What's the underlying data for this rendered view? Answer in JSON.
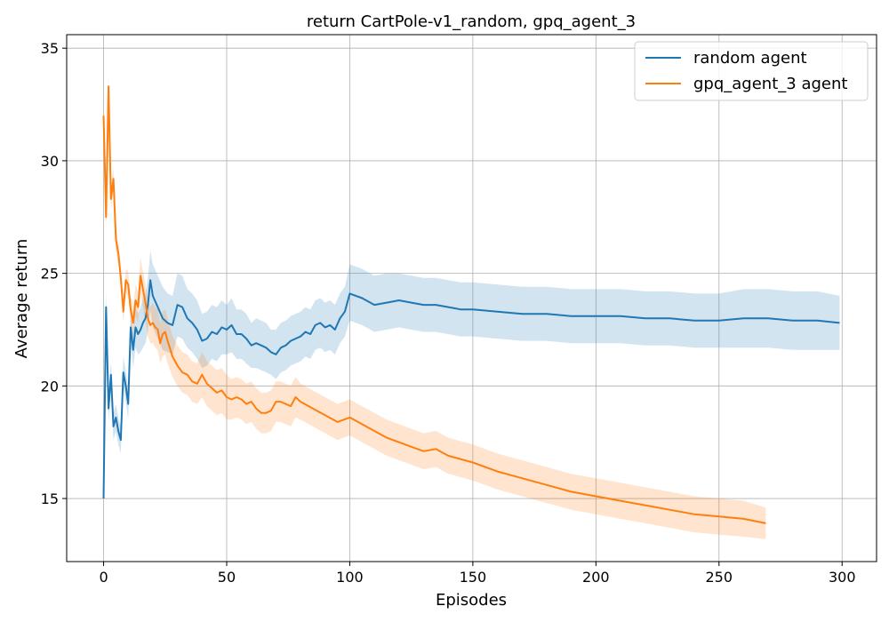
{
  "chart_data": {
    "type": "line",
    "title": "return CartPole-v1_random, gpq_agent_3",
    "xlabel": "Episodes",
    "ylabel": "Average return",
    "xlim": [
      -15,
      314
    ],
    "ylim": [
      12.2,
      35.6
    ],
    "xticks": [
      0,
      50,
      100,
      150,
      200,
      250,
      300
    ],
    "yticks": [
      15,
      20,
      25,
      30,
      35
    ],
    "grid": true,
    "legend_position": "top-right",
    "series": [
      {
        "name": "random agent",
        "color": "#1f77b4",
        "band_color": "#1f77b4",
        "x": [
          0,
          1,
          2,
          3,
          4,
          5,
          6,
          7,
          8,
          9,
          10,
          11,
          12,
          13,
          14,
          15,
          16,
          17,
          18,
          19,
          20,
          22,
          24,
          26,
          28,
          30,
          32,
          34,
          36,
          38,
          40,
          42,
          44,
          46,
          48,
          50,
          52,
          54,
          56,
          58,
          60,
          62,
          64,
          66,
          68,
          70,
          72,
          74,
          76,
          78,
          80,
          82,
          84,
          86,
          88,
          90,
          92,
          94,
          96,
          98,
          100,
          105,
          110,
          115,
          120,
          125,
          130,
          135,
          140,
          145,
          150,
          160,
          170,
          180,
          190,
          200,
          210,
          220,
          230,
          240,
          250,
          260,
          270,
          280,
          290,
          299
        ],
        "y": [
          15.0,
          23.5,
          19.0,
          20.5,
          18.2,
          18.6,
          18.0,
          17.6,
          20.6,
          20.0,
          19.2,
          22.6,
          21.6,
          22.6,
          22.3,
          22.5,
          22.8,
          23.0,
          23.6,
          24.7,
          24.0,
          23.5,
          23.0,
          22.8,
          22.7,
          23.6,
          23.5,
          23.0,
          22.8,
          22.5,
          22.0,
          22.1,
          22.4,
          22.3,
          22.6,
          22.5,
          22.7,
          22.3,
          22.3,
          22.1,
          21.8,
          21.9,
          21.8,
          21.7,
          21.5,
          21.4,
          21.7,
          21.8,
          22.0,
          22.1,
          22.2,
          22.4,
          22.3,
          22.7,
          22.8,
          22.6,
          22.7,
          22.5,
          23.0,
          23.3,
          24.1,
          23.9,
          23.6,
          23.7,
          23.8,
          23.7,
          23.6,
          23.6,
          23.5,
          23.4,
          23.4,
          23.3,
          23.2,
          23.2,
          23.1,
          23.1,
          23.1,
          23.0,
          23.0,
          22.9,
          22.9,
          23.0,
          23.0,
          22.9,
          22.9,
          22.8
        ],
        "lower": [
          15.0,
          22.8,
          18.4,
          19.9,
          17.6,
          18.0,
          17.4,
          17.0,
          19.9,
          19.3,
          18.5,
          21.8,
          20.8,
          21.7,
          21.4,
          21.5,
          21.7,
          21.9,
          22.4,
          23.4,
          22.6,
          22.1,
          21.6,
          21.5,
          21.4,
          22.2,
          22.1,
          21.7,
          21.5,
          21.2,
          20.8,
          20.9,
          21.2,
          21.1,
          21.4,
          21.4,
          21.5,
          21.2,
          21.2,
          21.0,
          20.8,
          20.8,
          20.7,
          20.6,
          20.5,
          20.3,
          20.6,
          20.7,
          20.9,
          21.0,
          21.1,
          21.3,
          21.2,
          21.6,
          21.7,
          21.5,
          21.6,
          21.4,
          21.9,
          22.2,
          22.9,
          22.7,
          22.4,
          22.5,
          22.6,
          22.5,
          22.4,
          22.4,
          22.3,
          22.2,
          22.2,
          22.1,
          22.0,
          22.0,
          21.9,
          21.9,
          21.9,
          21.8,
          21.8,
          21.7,
          21.7,
          21.7,
          21.7,
          21.6,
          21.6,
          21.6
        ],
        "upper": [
          15.0,
          24.2,
          19.6,
          21.1,
          18.8,
          19.2,
          18.6,
          18.2,
          21.3,
          20.7,
          19.9,
          23.4,
          22.4,
          23.5,
          23.2,
          23.5,
          23.9,
          24.1,
          24.8,
          26.0,
          25.4,
          24.9,
          24.4,
          24.1,
          24.0,
          25.0,
          24.9,
          24.3,
          24.1,
          23.8,
          23.2,
          23.3,
          23.6,
          23.5,
          23.8,
          23.6,
          23.9,
          23.4,
          23.4,
          23.2,
          22.8,
          23.0,
          22.9,
          22.8,
          22.5,
          22.5,
          22.8,
          22.9,
          23.1,
          23.2,
          23.3,
          23.5,
          23.4,
          23.8,
          23.9,
          23.7,
          23.8,
          23.6,
          24.1,
          24.4,
          25.4,
          25.2,
          24.9,
          25.0,
          25.0,
          24.9,
          24.8,
          24.8,
          24.7,
          24.6,
          24.6,
          24.5,
          24.4,
          24.4,
          24.3,
          24.3,
          24.3,
          24.2,
          24.2,
          24.1,
          24.1,
          24.3,
          24.3,
          24.2,
          24.2,
          24.0
        ]
      },
      {
        "name": "gpq_agent_3 agent",
        "color": "#ff7f0e",
        "band_color": "#ff7f0e",
        "x": [
          0,
          1,
          2,
          3,
          4,
          5,
          6,
          7,
          8,
          9,
          10,
          11,
          12,
          13,
          14,
          15,
          16,
          17,
          18,
          19,
          20,
          21,
          22,
          23,
          24,
          25,
          26,
          28,
          30,
          32,
          34,
          36,
          38,
          40,
          42,
          44,
          46,
          48,
          50,
          52,
          54,
          56,
          58,
          60,
          62,
          64,
          66,
          68,
          70,
          72,
          74,
          76,
          78,
          80,
          85,
          90,
          95,
          100,
          105,
          110,
          115,
          120,
          125,
          130,
          135,
          140,
          150,
          160,
          170,
          180,
          190,
          200,
          210,
          220,
          230,
          240,
          250,
          260,
          269
        ],
        "y": [
          32.0,
          27.5,
          33.3,
          28.3,
          29.2,
          26.5,
          25.9,
          24.8,
          23.3,
          24.7,
          24.5,
          23.4,
          22.8,
          23.8,
          23.5,
          24.9,
          24.3,
          23.7,
          23.0,
          22.7,
          22.8,
          22.6,
          22.5,
          21.9,
          22.3,
          22.4,
          22.0,
          21.3,
          20.9,
          20.6,
          20.5,
          20.2,
          20.1,
          20.5,
          20.1,
          19.9,
          19.7,
          19.8,
          19.5,
          19.4,
          19.5,
          19.4,
          19.2,
          19.3,
          19.0,
          18.8,
          18.8,
          18.9,
          19.3,
          19.3,
          19.2,
          19.1,
          19.5,
          19.3,
          19.0,
          18.7,
          18.4,
          18.6,
          18.3,
          18.0,
          17.7,
          17.5,
          17.3,
          17.1,
          17.2,
          16.9,
          16.6,
          16.2,
          15.9,
          15.6,
          15.3,
          15.1,
          14.9,
          14.7,
          14.5,
          14.3,
          14.2,
          14.1,
          13.9
        ],
        "lower": [
          32.0,
          27.0,
          32.8,
          27.8,
          28.7,
          26.0,
          25.4,
          24.3,
          22.8,
          24.2,
          23.9,
          22.8,
          22.1,
          23.1,
          22.8,
          24.1,
          23.5,
          22.9,
          22.2,
          21.9,
          21.9,
          21.7,
          21.6,
          21.0,
          21.3,
          21.4,
          21.0,
          20.4,
          20.0,
          19.7,
          19.6,
          19.3,
          19.2,
          19.5,
          19.1,
          18.9,
          18.7,
          18.8,
          18.5,
          18.5,
          18.6,
          18.5,
          18.3,
          18.4,
          18.1,
          17.9,
          17.9,
          18.0,
          18.4,
          18.4,
          18.3,
          18.2,
          18.6,
          18.5,
          18.2,
          17.9,
          17.6,
          17.8,
          17.5,
          17.2,
          16.9,
          16.7,
          16.5,
          16.3,
          16.4,
          16.1,
          15.8,
          15.4,
          15.1,
          14.8,
          14.5,
          14.3,
          14.1,
          13.9,
          13.7,
          13.5,
          13.4,
          13.3,
          13.2
        ],
        "upper": [
          32.0,
          28.0,
          33.8,
          28.8,
          29.7,
          27.0,
          26.4,
          25.3,
          23.8,
          25.2,
          25.1,
          24.0,
          23.5,
          24.5,
          24.2,
          25.7,
          25.1,
          24.5,
          23.8,
          23.5,
          23.7,
          23.5,
          23.4,
          22.8,
          23.3,
          23.4,
          23.0,
          22.2,
          21.8,
          21.5,
          21.4,
          21.1,
          21.0,
          21.5,
          21.1,
          20.9,
          20.7,
          20.8,
          20.5,
          20.3,
          20.4,
          20.3,
          20.1,
          20.2,
          19.9,
          19.7,
          19.7,
          19.8,
          20.2,
          20.2,
          20.1,
          20.0,
          20.4,
          20.1,
          19.8,
          19.5,
          19.2,
          19.4,
          19.1,
          18.8,
          18.5,
          18.3,
          18.1,
          17.9,
          18.0,
          17.7,
          17.4,
          17.0,
          16.7,
          16.4,
          16.1,
          15.9,
          15.7,
          15.5,
          15.3,
          15.1,
          15.0,
          14.9,
          14.6
        ]
      }
    ]
  }
}
